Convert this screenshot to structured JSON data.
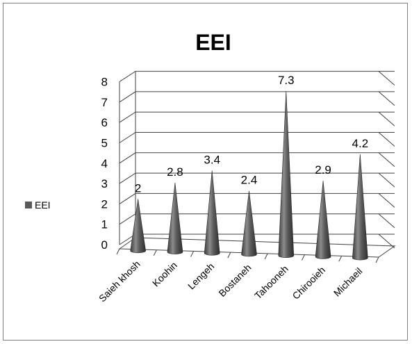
{
  "chart_data": {
    "type": "bar",
    "title": "EEI",
    "categories": [
      "Saieh khosh",
      "Koohin",
      "Lengeh",
      "Bostaneh",
      "Tahooneh",
      "Chirooieh",
      "Michaeil"
    ],
    "series": [
      {
        "name": "EEI",
        "values": [
          2,
          2.8,
          3.4,
          2.4,
          7.3,
          2.9,
          4.2
        ],
        "color": "#595959"
      }
    ],
    "data_labels": [
      "2",
      "2.8",
      "3.4",
      "2.4",
      "7.3",
      "2.9",
      "4.2"
    ],
    "yticks": [
      "0",
      "1",
      "2",
      "3",
      "4",
      "5",
      "6",
      "7",
      "8"
    ],
    "ylim": [
      0,
      8
    ],
    "xlabel": "",
    "ylabel": "",
    "grid": true,
    "legend_position": "left",
    "shape": "cone"
  }
}
